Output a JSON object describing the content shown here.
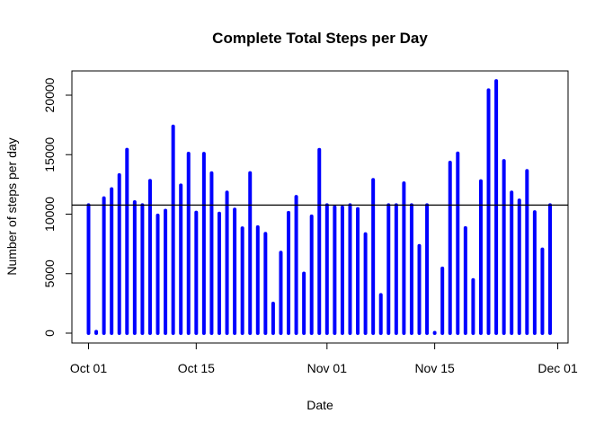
{
  "chart_data": {
    "type": "bar",
    "title": "Complete Total Steps per Day",
    "xlabel": "Date",
    "ylabel": "Number of steps per day",
    "x_ticks": [
      "Oct 01",
      "Oct 15",
      "Nov 01",
      "Nov 15",
      "Dec 01"
    ],
    "y_ticks": [
      "0",
      "5000",
      "10000",
      "15000",
      "20000"
    ],
    "ylim": [
      0,
      21500
    ],
    "xlim": [
      "2012-09-30",
      "2012-12-01"
    ],
    "bar_color": "#0000ff",
    "reference_line": {
      "value": 10766,
      "color": "#000000"
    },
    "grid": false,
    "x": [
      "2012-10-01",
      "2012-10-02",
      "2012-10-03",
      "2012-10-04",
      "2012-10-05",
      "2012-10-06",
      "2012-10-07",
      "2012-10-08",
      "2012-10-09",
      "2012-10-10",
      "2012-10-11",
      "2012-10-12",
      "2012-10-13",
      "2012-10-14",
      "2012-10-15",
      "2012-10-16",
      "2012-10-17",
      "2012-10-18",
      "2012-10-19",
      "2012-10-20",
      "2012-10-21",
      "2012-10-22",
      "2012-10-23",
      "2012-10-24",
      "2012-10-25",
      "2012-10-26",
      "2012-10-27",
      "2012-10-28",
      "2012-10-29",
      "2012-10-30",
      "2012-10-31",
      "2012-11-01",
      "2012-11-02",
      "2012-11-03",
      "2012-11-04",
      "2012-11-05",
      "2012-11-06",
      "2012-11-07",
      "2012-11-08",
      "2012-11-09",
      "2012-11-10",
      "2012-11-11",
      "2012-11-12",
      "2012-11-13",
      "2012-11-14",
      "2012-11-15",
      "2012-11-16",
      "2012-11-17",
      "2012-11-18",
      "2012-11-19",
      "2012-11-20",
      "2012-11-21",
      "2012-11-22",
      "2012-11-23",
      "2012-11-24",
      "2012-11-25",
      "2012-11-26",
      "2012-11-27",
      "2012-11-28",
      "2012-11-29",
      "2012-11-30"
    ],
    "values": [
      10766,
      126,
      11352,
      12116,
      13294,
      15420,
      11015,
      10766,
      12811,
      9900,
      10304,
      17382,
      12426,
      15098,
      10139,
      15084,
      13452,
      10056,
      11829,
      10395,
      8821,
      13460,
      8918,
      8355,
      2492,
      6778,
      10119,
      11458,
      5018,
      9819,
      15414,
      10766,
      10600,
      10571,
      10766,
      10439,
      8334,
      12883,
      3219,
      10766,
      10766,
      12608,
      10765,
      7336,
      10766,
      41,
      5441,
      14339,
      15110,
      8841,
      4472,
      12787,
      20427,
      21194,
      14478,
      11834,
      11162,
      13646,
      10183,
      7047,
      10766
    ]
  }
}
